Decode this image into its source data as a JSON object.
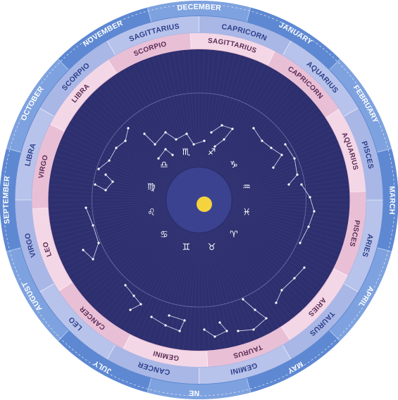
{
  "colors": {
    "outer_ring": "#5e88d2",
    "outer_ring_alt": "#7ea2df",
    "tropical_ring": "#a9b7e6",
    "sidereal_ring": "#e9bfd6",
    "sidereal_ring_alt": "#f4d7e6",
    "sky": "#2e2f6e",
    "inner_disc": "#3b4390",
    "sun": "#f4d33f",
    "month_text": "#2d3f8a",
    "sign_text": "#3a3f7a",
    "sidereal_text": "#5a2c55"
  },
  "months": [
    {
      "label": "DECEMBER",
      "angle": -90
    },
    {
      "label": "JANUARY",
      "angle": -60
    },
    {
      "label": "FEBRUARY",
      "angle": -30
    },
    {
      "label": "MARCH",
      "angle": 0
    },
    {
      "label": "APRIL",
      "angle": 30
    },
    {
      "label": "MAY",
      "angle": 60
    },
    {
      "label": "JUNE",
      "angle": 90
    },
    {
      "label": "JULY",
      "angle": 120
    },
    {
      "label": "AUGUST",
      "angle": 150
    },
    {
      "label": "SEPTEMBER",
      "angle": 180
    },
    {
      "label": "OCTOBER",
      "angle": 210
    },
    {
      "label": "NOVEMBER",
      "angle": 240
    }
  ],
  "tropical_signs": [
    {
      "label": "CAPRICORN",
      "angle": -75
    },
    {
      "label": "AQUARIUS",
      "angle": -45
    },
    {
      "label": "PISCES",
      "angle": -15
    },
    {
      "label": "ARIES",
      "angle": 15
    },
    {
      "label": "TAURUS",
      "angle": 45
    },
    {
      "label": "GEMINI",
      "angle": 75
    },
    {
      "label": "CANCER",
      "angle": 105
    },
    {
      "label": "LEO",
      "angle": 135
    },
    {
      "label": "VIRGO",
      "angle": 165
    },
    {
      "label": "LIBRA",
      "angle": 195
    },
    {
      "label": "SCORPIO",
      "angle": 225
    },
    {
      "label": "SAGITTARIUS",
      "angle": 255
    }
  ],
  "sidereal_signs": [
    {
      "label": "SAGITTARIUS",
      "angle": -78
    },
    {
      "label": "CAPRICORN",
      "angle": -48
    },
    {
      "label": "AQUARIUS",
      "angle": -18
    },
    {
      "label": "PISCES",
      "angle": 12
    },
    {
      "label": "ARIES",
      "angle": 42
    },
    {
      "label": "TAURUS",
      "angle": 72
    },
    {
      "label": "GEMINI",
      "angle": 102
    },
    {
      "label": "CANCER",
      "angle": 132
    },
    {
      "label": "LEO",
      "angle": 162
    },
    {
      "label": "VIRGO",
      "angle": 192
    },
    {
      "label": "LIBRA",
      "angle": 222
    },
    {
      "label": "SCORPIO",
      "angle": 252
    }
  ],
  "zodiac_symbols": [
    {
      "name": "scorpio-glyph",
      "glyph": "♏",
      "angle": -105
    },
    {
      "name": "sagittarius-glyph",
      "glyph": "♐",
      "angle": -75
    },
    {
      "name": "capricorn-glyph",
      "glyph": "♑",
      "angle": -45
    },
    {
      "name": "aquarius-glyph",
      "glyph": "♒",
      "angle": -15
    },
    {
      "name": "pisces-glyph",
      "glyph": "♓",
      "angle": 15
    },
    {
      "name": "aries-glyph",
      "glyph": "♈",
      "angle": 45
    },
    {
      "name": "taurus-glyph",
      "glyph": "♉",
      "angle": 75
    },
    {
      "name": "gemini-glyph",
      "glyph": "♊",
      "angle": 105
    },
    {
      "name": "cancer-glyph",
      "glyph": "♋",
      "angle": 135
    },
    {
      "name": "leo-glyph",
      "glyph": "♌",
      "angle": 165
    },
    {
      "name": "virgo-glyph",
      "glyph": "♍",
      "angle": 195
    },
    {
      "name": "libra-glyph",
      "glyph": "♎",
      "angle": 225
    }
  ],
  "icons": {
    "center": "sun-icon",
    "stars": "star-icon"
  }
}
